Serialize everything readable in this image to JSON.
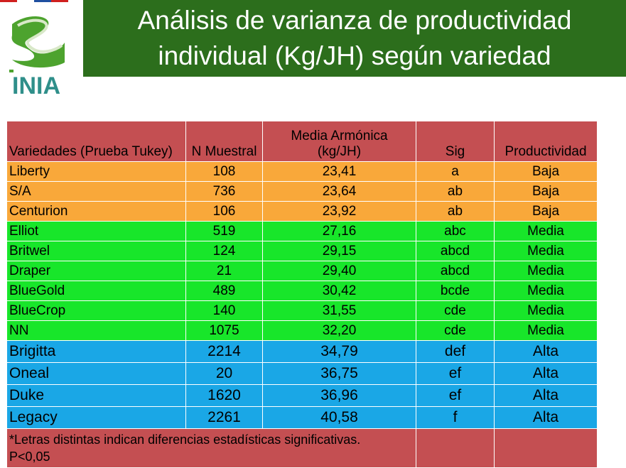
{
  "colors": {
    "title_bg": "#2c6e1c",
    "header_bg": "#c44f52",
    "low_bg": "#f9a83a",
    "mid_bg": "#18e62a",
    "high_bg": "#1aa7e6",
    "flag": [
      "#d0201f",
      "#ffffff",
      "#1f4fa0",
      "#d0201f"
    ]
  },
  "logo": {
    "text": "INIA"
  },
  "title": {
    "line1": "Análisis de varianza de  productividad",
    "line2": "individual (Kg/JH) según variedad"
  },
  "table": {
    "headers": {
      "variety": "Variedades (Prueba Tukey)",
      "n": "N Muestral",
      "mean_line1": "Media Armónica",
      "mean_line2": "(kg/JH)",
      "sig": "Sig",
      "productivity": "Productividad"
    },
    "rows": [
      {
        "variety": "Liberty",
        "n": "108",
        "mean": "23,41",
        "sig": "a",
        "productivity": "Baja",
        "group": "low"
      },
      {
        "variety": "S/A",
        "n": "736",
        "mean": "23,64",
        "sig": "ab",
        "productivity": "Baja",
        "group": "low"
      },
      {
        "variety": "Centurion",
        "n": "106",
        "mean": "23,92",
        "sig": "ab",
        "productivity": "Baja",
        "group": "low"
      },
      {
        "variety": "Elliot",
        "n": "519",
        "mean": "27,16",
        "sig": "abc",
        "productivity": "Media",
        "group": "mid"
      },
      {
        "variety": "Britwel",
        "n": "124",
        "mean": "29,15",
        "sig": "abcd",
        "productivity": "Media",
        "group": "mid"
      },
      {
        "variety": "Draper",
        "n": "21",
        "mean": "29,40",
        "sig": "abcd",
        "productivity": "Media",
        "group": "mid"
      },
      {
        "variety": "BlueGold",
        "n": "489",
        "mean": "30,42",
        "sig": "bcde",
        "productivity": "Media",
        "group": "mid"
      },
      {
        "variety": "BlueCrop",
        "n": "140",
        "mean": "31,55",
        "sig": "cde",
        "productivity": "Media",
        "group": "mid"
      },
      {
        "variety": "NN",
        "n": "1075",
        "mean": "32,20",
        "sig": "cde",
        "productivity": "Media",
        "group": "mid"
      },
      {
        "variety": "Brigitta",
        "n": "2214",
        "mean": "34,79",
        "sig": "def",
        "productivity": "Alta",
        "group": "high"
      },
      {
        "variety": "Oneal",
        "n": "20",
        "mean": "36,75",
        "sig": "ef",
        "productivity": "Alta",
        "group": "high"
      },
      {
        "variety": "Duke",
        "n": "1620",
        "mean": "36,96",
        "sig": "ef",
        "productivity": "Alta",
        "group": "high"
      },
      {
        "variety": "Legacy",
        "n": "2261",
        "mean": "40,58",
        "sig": "f",
        "productivity": "Alta",
        "group": "high"
      }
    ],
    "footnote_line1": "*Letras distintas indican diferencias estadísticas significativas.",
    "footnote_line2": "P<0,05"
  }
}
